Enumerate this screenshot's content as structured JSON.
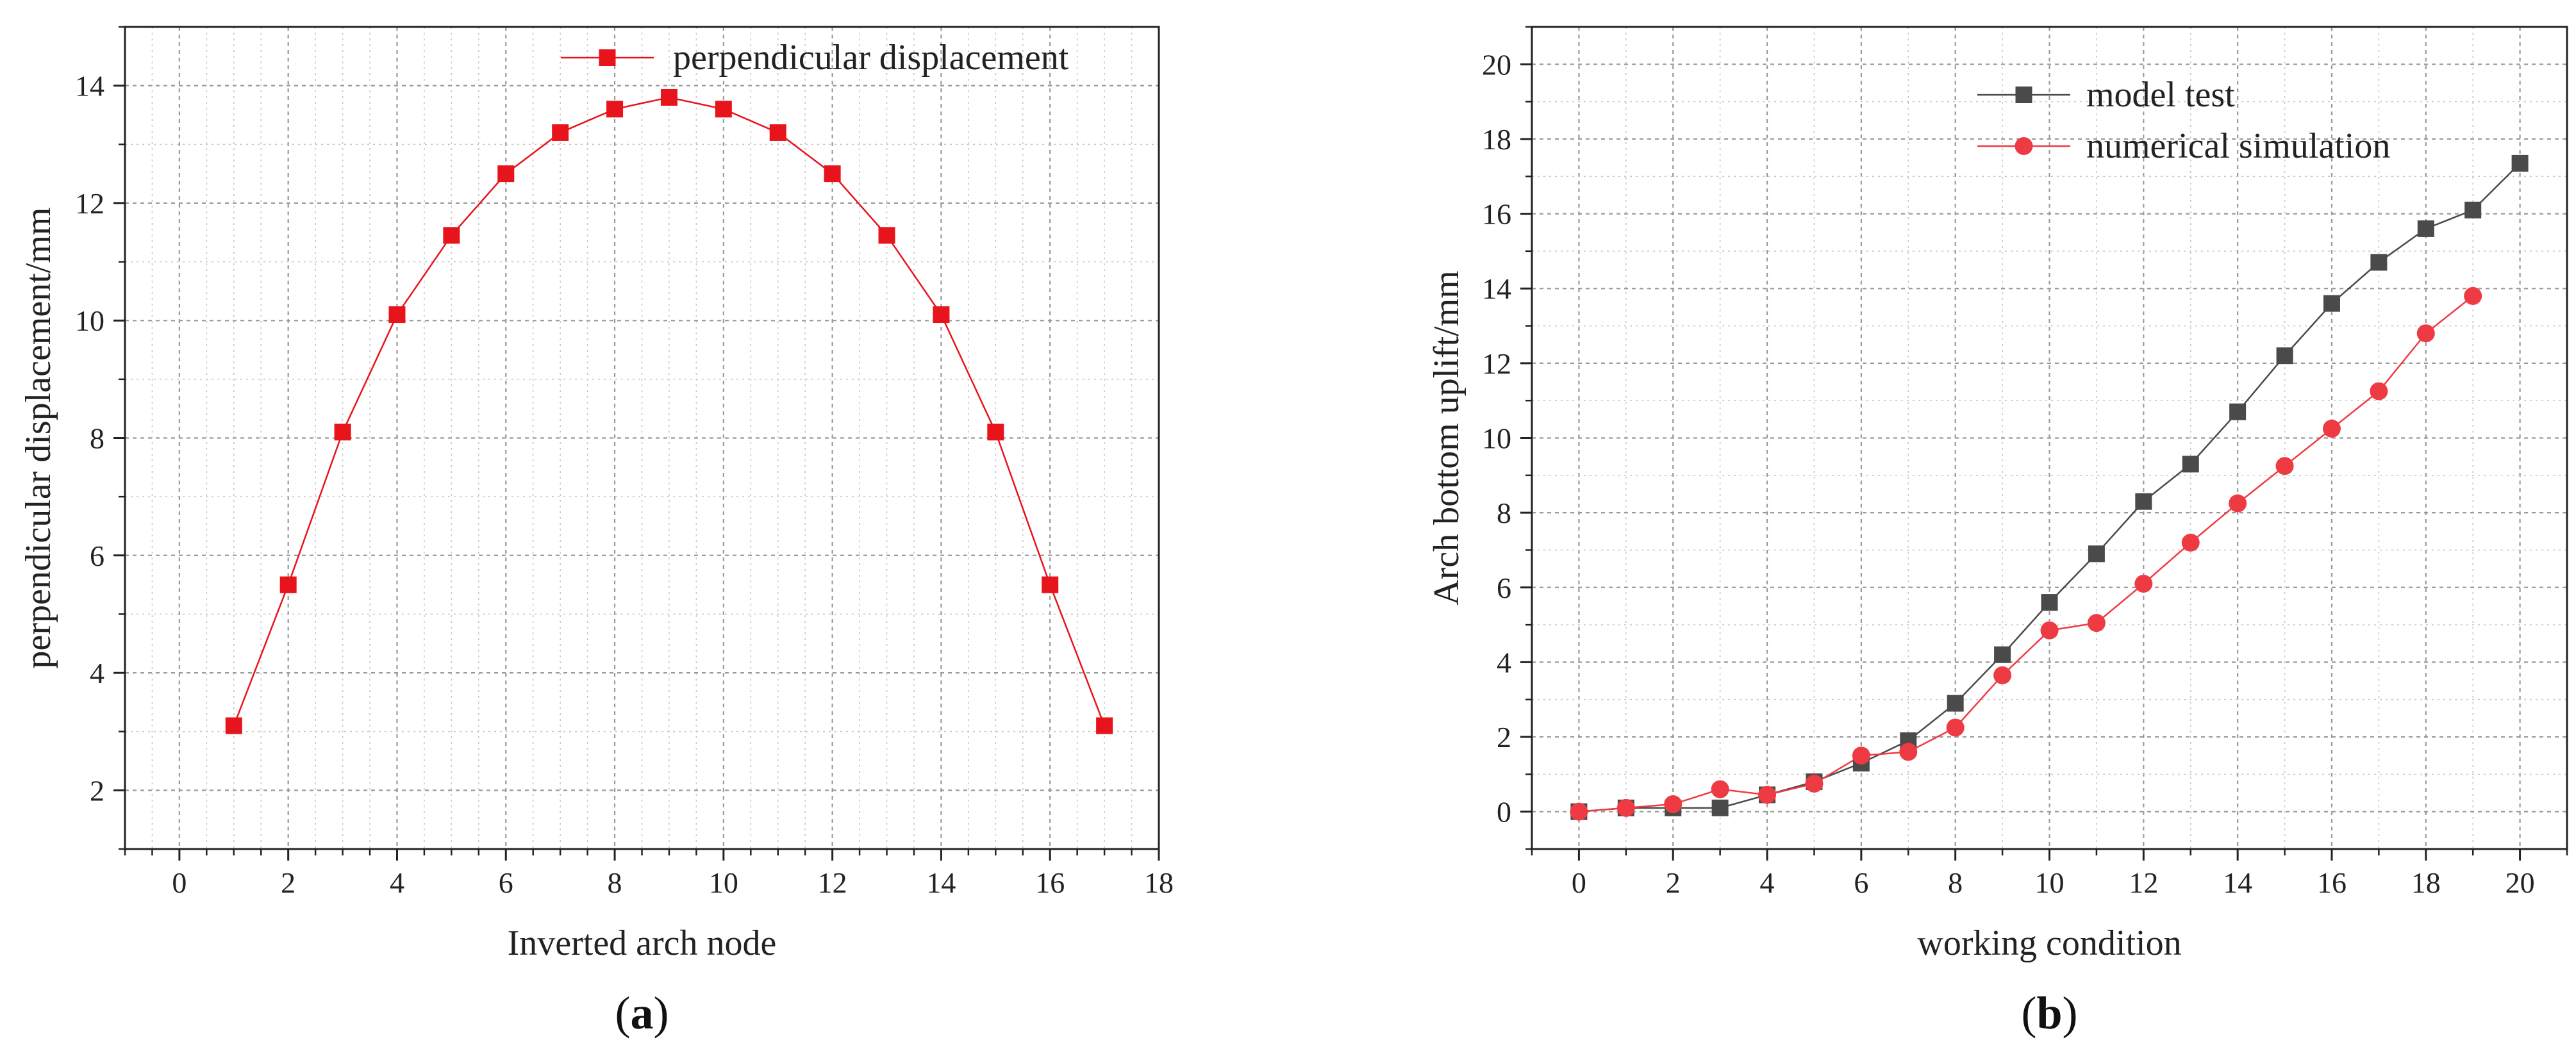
{
  "chart_data": [
    {
      "type": "line",
      "panel_label": {
        "open": "(",
        "letter": "a",
        "close": ")"
      },
      "xlabel": "Inverted arch node",
      "ylabel": "perpendicular displacement/mm",
      "xlim": [
        -1,
        18
      ],
      "ylim": [
        1,
        15
      ],
      "xticks": [
        0,
        2,
        4,
        6,
        8,
        10,
        12,
        14,
        16,
        18
      ],
      "yticks": [
        2,
        4,
        6,
        8,
        10,
        12,
        14
      ],
      "grid": true,
      "legend_position": "top-right",
      "series": [
        {
          "name": "perpendicular displacement",
          "color": "#e8141c",
          "marker": "square",
          "x": [
            1,
            2,
            3,
            4,
            5,
            6,
            7,
            8,
            9,
            10,
            11,
            12,
            13,
            14,
            15,
            16,
            17
          ],
          "values": [
            3.1,
            5.5,
            8.1,
            10.1,
            11.45,
            12.5,
            13.2,
            13.6,
            13.8,
            13.6,
            13.2,
            12.5,
            11.45,
            10.1,
            8.1,
            5.5,
            3.1
          ]
        }
      ]
    },
    {
      "type": "line",
      "panel_label": {
        "open": "(",
        "letter": "b",
        "close": ")"
      },
      "xlabel": "working condition",
      "ylabel": "Arch bottom uplift/mm",
      "xlim": [
        -1,
        21
      ],
      "ylim": [
        -1,
        21
      ],
      "xticks": [
        0,
        2,
        4,
        6,
        8,
        10,
        12,
        14,
        16,
        18,
        20
      ],
      "yticks": [
        0,
        2,
        4,
        6,
        8,
        10,
        12,
        14,
        16,
        18,
        20
      ],
      "grid": true,
      "legend_position": "top-center",
      "series": [
        {
          "name": "model test",
          "color": "#4a4a4a",
          "marker": "square",
          "x": [
            0,
            1,
            2,
            3,
            4,
            5,
            6,
            7,
            8,
            9,
            10,
            11,
            12,
            13,
            14,
            15,
            16,
            17,
            18,
            19,
            20
          ],
          "values": [
            0,
            0.1,
            0.1,
            0.1,
            0.45,
            0.8,
            1.3,
            1.9,
            2.9,
            4.2,
            5.6,
            6.9,
            8.3,
            9.3,
            10.7,
            12.2,
            13.6,
            14.7,
            15.6,
            16.1,
            17.35
          ]
        },
        {
          "name": "numerical simulation",
          "color": "#ee3b43",
          "marker": "circle",
          "x": [
            0,
            1,
            2,
            3,
            4,
            5,
            6,
            7,
            8,
            9,
            10,
            11,
            12,
            13,
            14,
            15,
            16,
            17,
            18,
            19
          ],
          "values": [
            0,
            0.1,
            0.2,
            0.6,
            0.45,
            0.75,
            1.5,
            1.6,
            2.25,
            3.65,
            4.85,
            5.05,
            6.1,
            7.2,
            8.25,
            9.25,
            10.25,
            11.25,
            12.8,
            13.8
          ]
        }
      ]
    }
  ]
}
